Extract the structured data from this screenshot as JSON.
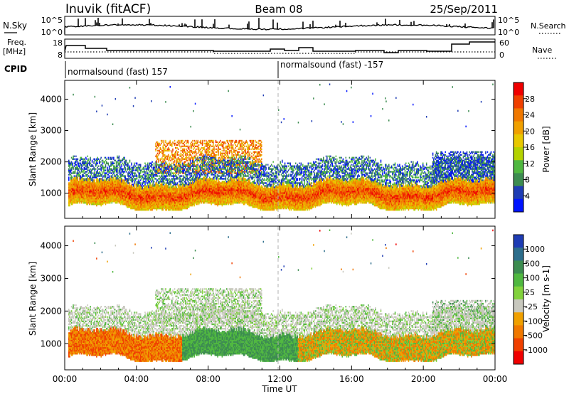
{
  "header": {
    "station": "Inuvik (fitACF)",
    "beam": "Beam 08",
    "date": "25/Sep/2011"
  },
  "summary_panels": {
    "nsky_label": "N.Sky",
    "nsky_ticks": [
      "10^5",
      "10^0"
    ],
    "nsearch_label": "N.Search",
    "nsearch_ticks": [
      "10^5",
      "10^0"
    ],
    "freq_label_lines": [
      "Freq.",
      "[MHz]"
    ],
    "freq_ticks": [
      "18",
      "8"
    ],
    "nave_label": "Nave",
    "nave_ticks": [
      "60",
      "0"
    ],
    "cpid_label": "CPID",
    "cpid_segments": [
      "normalsound (fast) 157",
      "normalsound (fast) -157"
    ]
  },
  "chart_data": [
    {
      "type": "heatmap",
      "name": "power",
      "xlabel": "",
      "ylabel": "Slant Range [km]",
      "xlim": [
        0,
        24
      ],
      "ylim": [
        200,
        4600
      ],
      "y_ticks": [
        "1000",
        "2000",
        "3000",
        "4000"
      ],
      "colorbar": {
        "label": "Power [dB]",
        "ticks": [
          "28",
          "24",
          "20",
          "16",
          "12",
          "8",
          "4"
        ],
        "colors": [
          "#f00000",
          "#f04000",
          "#f07800",
          "#f0a000",
          "#e8c800",
          "#b4d200",
          "#50b840",
          "#3c8c50",
          "#1e3cb4",
          "#0014ff"
        ]
      },
      "bands": [
        {
          "range_km": [
            600,
            1300
          ],
          "x_start_h": 0.2,
          "x_end_h": 24.0,
          "dominant_db": 26
        },
        {
          "range_km": [
            1300,
            2100
          ],
          "x_start_h": 0.2,
          "x_end_h": 24.0,
          "dominant_db": 12
        },
        {
          "range_km": [
            1600,
            2700
          ],
          "x_start_h": 5.0,
          "x_end_h": 11.0,
          "dominant_db": 22
        }
      ]
    },
    {
      "type": "heatmap",
      "name": "velocity",
      "xlabel": "Time UT",
      "ylabel": "Slant Range [km]",
      "xlim": [
        0,
        24
      ],
      "ylim": [
        200,
        4600
      ],
      "x_ticks": [
        "00:00",
        "04:00",
        "08:00",
        "12:00",
        "16:00",
        "20:00",
        "00:00"
      ],
      "y_ticks": [
        "1000",
        "2000",
        "3000",
        "4000"
      ],
      "colorbar": {
        "label": "Velocity [m s-1]",
        "ticks": [
          "1000",
          "500",
          "100",
          "25",
          "-25",
          "-100",
          "-500",
          "-1000"
        ],
        "colors": [
          "#1e3cb4",
          "#2d6e8c",
          "#3c8c50",
          "#50b840",
          "#82d23c",
          "#c8c8be",
          "#f0a000",
          "#f07800",
          "#f04000",
          "#f00000"
        ]
      },
      "bands": [
        {
          "range_km": [
            600,
            1400
          ],
          "x_start_h": 0.2,
          "x_end_h": 6.5,
          "dominant_mps": -300
        },
        {
          "range_km": [
            600,
            1300
          ],
          "x_start_h": 6.5,
          "x_end_h": 13.0,
          "dominant_mps": 150
        },
        {
          "range_km": [
            1500,
            2600
          ],
          "x_start_h": 5.5,
          "x_end_h": 13.0,
          "dominant_mps": 0
        },
        {
          "range_km": [
            700,
            1300
          ],
          "x_start_h": 13.0,
          "x_end_h": 24.0,
          "dominant_mps": -200
        }
      ]
    }
  ]
}
